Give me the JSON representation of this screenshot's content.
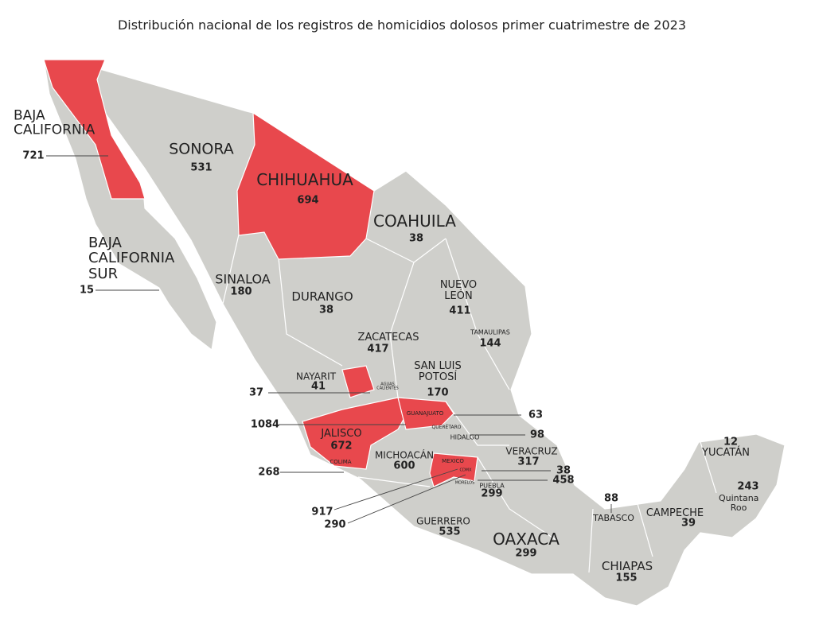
{
  "title": "Distribución nacional de los registros de homicidios dolosos primer cuatrimestre de 2023",
  "states": [
    {
      "name": "BAJA CALIFORNIA",
      "value": 721
    },
    {
      "name": "SONORA",
      "value": 531
    },
    {
      "name": "CHIHUAHUA",
      "value": 694
    },
    {
      "name": "COAHUILA",
      "value": 38
    },
    {
      "name": "BAJA CALIFORNIA SUR",
      "value": 15
    },
    {
      "name": "SINALOA",
      "value": 180
    },
    {
      "name": "DURANGO",
      "value": 38
    },
    {
      "name": "NUEVO LEÓN",
      "value": 411
    },
    {
      "name": "TAMAULIPAS",
      "value": 144
    },
    {
      "name": "ZACATECAS",
      "value": 417
    },
    {
      "name": "SAN LUIS POTOSÍ",
      "value": 170
    },
    {
      "name": "NAYARIT",
      "value": 41
    },
    {
      "name": "AGUAS CALIENTES",
      "value": 37
    },
    {
      "name": "GUANAJUATO",
      "value": 1084
    },
    {
      "name": "QUERÉTARO",
      "value": 63
    },
    {
      "name": "HIDALGO",
      "value": 98
    },
    {
      "name": "JALISCO",
      "value": 672
    },
    {
      "name": "MICHOACÁN",
      "value": 600
    },
    {
      "name": "VERACRUZ",
      "value": 317
    },
    {
      "name": "COLIMA",
      "value": 268
    },
    {
      "name": "MEXICO",
      "value": 917
    },
    {
      "name": "CDMX",
      "value": 290
    },
    {
      "value": 38
    },
    {
      "name": "MORELOS",
      "value": 458
    },
    {
      "name": "PUEBLA",
      "value": 299
    },
    {
      "name": "GUERRERO",
      "value": 535
    },
    {
      "name": "OAXACA",
      "value": 299
    },
    {
      "name": "TABASCO",
      "value": 88
    },
    {
      "name": "CAMPECHE",
      "value": 39
    },
    {
      "name": "CHIAPAS",
      "value": 155
    },
    {
      "name": "YUCATÁN",
      "value": 12
    },
    {
      "name": "Quintana Roo",
      "value": 243
    }
  ]
}
